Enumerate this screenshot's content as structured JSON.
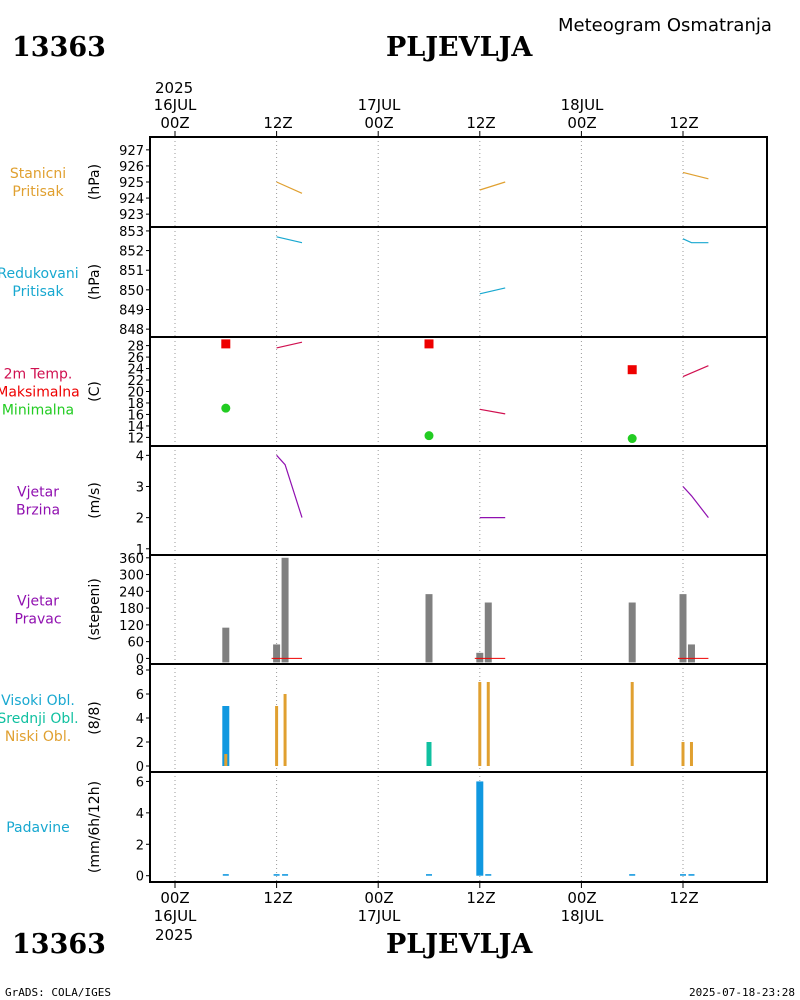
{
  "header": {
    "station_id": "13363",
    "station_name": "PLJEVLJA",
    "subtitle": "Meteogram Osmatranja",
    "year": "2025"
  },
  "footer": {
    "station_id": "13363",
    "station_name": "PLJEVLJA",
    "year": "2025",
    "credit": "GrADS: COLA/IGES",
    "timestamp": "2025-07-18-23:28"
  },
  "time_axis": {
    "hour_labels": [
      "00Z",
      "12Z",
      "00Z",
      "12Z",
      "00Z",
      "12Z"
    ],
    "date_labels": [
      "16JUL",
      "17JUL",
      "18JUL"
    ]
  },
  "colors": {
    "orange": "#e0a030",
    "cyan": "#18a8d0",
    "crimson": "#d01050",
    "red": "#ee0000",
    "green": "#22cc22",
    "purple": "#9010b0",
    "gray": "#808080",
    "teal": "#10c0a0",
    "blue": "#1098e0"
  },
  "chart_data": [
    {
      "type": "line",
      "title": "Stanicni Pritisak",
      "label_lines": [
        "Stanicni",
        "Pritisak"
      ],
      "ylabel": "(hPa)",
      "ylim": [
        922.2,
        927.8
      ],
      "yticks": [
        923,
        924,
        925,
        926,
        927
      ],
      "series": [
        {
          "name": "pressure",
          "x_hours": [
            12,
            15
          ],
          "values": [
            925.0,
            924.3
          ]
        },
        {
          "name": "pressure",
          "x_hours": [
            36,
            39
          ],
          "values": [
            924.5,
            925.0
          ]
        },
        {
          "name": "pressure",
          "x_hours": [
            60,
            63
          ],
          "values": [
            925.6,
            925.2
          ]
        }
      ]
    },
    {
      "type": "line",
      "title": "Redukovani Pritisak",
      "label_lines": [
        "Redukovani",
        "Pritisak"
      ],
      "ylabel": "(hPa)",
      "ylim": [
        847.6,
        853.2
      ],
      "yticks": [
        848,
        849,
        850,
        851,
        852,
        853
      ],
      "series": [
        {
          "name": "reduced",
          "x_hours": [
            12,
            15
          ],
          "values": [
            852.7,
            852.4
          ]
        },
        {
          "name": "reduced",
          "x_hours": [
            36,
            39
          ],
          "values": [
            849.8,
            850.1
          ]
        },
        {
          "name": "reduced",
          "x_hours": [
            60,
            61,
            63
          ],
          "values": [
            852.6,
            852.4,
            852.4
          ]
        }
      ]
    },
    {
      "type": "line+scatter",
      "title": "2m Temp. Maksimalna Minimalna",
      "label_lines": [
        "2m Temp.",
        "Maksimalna",
        "Minimalna"
      ],
      "ylabel": "(C)",
      "ylim": [
        10.5,
        29.5
      ],
      "yticks": [
        12,
        14,
        16,
        18,
        20,
        22,
        24,
        26,
        28
      ],
      "series": [
        {
          "name": "temp",
          "x_hours": [
            12,
            15
          ],
          "values": [
            27.6,
            28.6
          ]
        },
        {
          "name": "temp",
          "x_hours": [
            36,
            39
          ],
          "values": [
            16.9,
            16.1
          ]
        },
        {
          "name": "temp",
          "x_hours": [
            60,
            63
          ],
          "values": [
            22.6,
            24.5
          ]
        }
      ],
      "maximum": {
        "x_hours": [
          6,
          30,
          54
        ],
        "values": [
          28.3,
          28.3,
          23.8
        ]
      },
      "minimum": {
        "x_hours": [
          6,
          30,
          54
        ],
        "values": [
          17.1,
          12.3,
          11.8
        ]
      }
    },
    {
      "type": "line",
      "title": "Vjetar Brzina",
      "label_lines": [
        "Vjetar",
        "Brzina"
      ],
      "ylabel": "(m/s)",
      "ylim": [
        0.8,
        4.3
      ],
      "yticks": [
        1,
        2,
        3,
        4
      ],
      "series": [
        {
          "name": "speed",
          "x_hours": [
            12,
            13,
            15
          ],
          "values": [
            4.0,
            3.7,
            2.0
          ]
        },
        {
          "name": "speed",
          "x_hours": [
            36,
            39
          ],
          "values": [
            2.0,
            2.0
          ]
        },
        {
          "name": "speed",
          "x_hours": [
            60,
            61,
            63
          ],
          "values": [
            3.0,
            2.7,
            2.0
          ]
        }
      ]
    },
    {
      "type": "bar",
      "title": "Vjetar Pravac",
      "label_lines": [
        "Vjetar",
        "Pravac"
      ],
      "ylabel": "(stepeni)",
      "ylim": [
        -20,
        370
      ],
      "yticks": [
        0,
        60,
        120,
        180,
        240,
        300,
        360
      ],
      "x_hours": [
        6,
        12,
        13,
        30,
        36,
        37,
        54,
        60,
        61
      ],
      "values": [
        110,
        50,
        360,
        230,
        20,
        200,
        200,
        230,
        50
      ]
    },
    {
      "type": "bar",
      "title": "Visoki Obl. Srednji Obl. Niski Obl.",
      "label_lines": [
        "Visoki Obl.",
        "Srednji Obl.",
        "Niski Obl."
      ],
      "ylabel": "(8/8)",
      "ylim": [
        -0.5,
        8.5
      ],
      "yticks": [
        0,
        2,
        4,
        6,
        8
      ],
      "series": [
        {
          "name": "Visoki Obl.",
          "x_hours": [
            6
          ],
          "values": [
            5
          ]
        },
        {
          "name": "Srednji Obl.",
          "x_hours": [
            30
          ],
          "values": [
            2
          ]
        },
        {
          "name": "Niski Obl.",
          "x_hours": [
            6,
            12,
            13,
            36,
            37,
            54,
            60,
            61
          ],
          "values": [
            1,
            5,
            6,
            7,
            7,
            7,
            2,
            2
          ]
        }
      ]
    },
    {
      "type": "bar",
      "title": "Padavine",
      "label_lines": [
        "Padavine"
      ],
      "ylabel": "(mm/6h/12h)",
      "ylim": [
        -0.4,
        6.6
      ],
      "yticks": [
        0,
        2,
        4,
        6
      ],
      "x_hours": [
        6,
        12,
        13,
        30,
        36,
        37,
        54,
        60,
        61
      ],
      "values": [
        0.1,
        0.1,
        0.1,
        0.1,
        6.0,
        0.1,
        0.1,
        0.1,
        0.1
      ]
    }
  ]
}
